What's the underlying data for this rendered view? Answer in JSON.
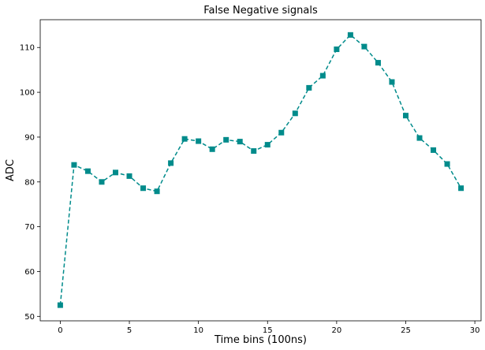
{
  "chart_data": {
    "type": "line",
    "title": "False Negative signals",
    "xlabel": "Time bins (100ns)",
    "ylabel": "ADC",
    "xlim": [
      -1.45,
      30.45
    ],
    "ylim": [
      49.0,
      116.2
    ],
    "xticks": [
      0,
      5,
      10,
      15,
      20,
      25,
      30
    ],
    "yticks": [
      50,
      60,
      70,
      80,
      90,
      100,
      110
    ],
    "grid": false,
    "series": [
      {
        "color": "#008b8b",
        "line_style": "dashed",
        "marker": "square",
        "x": [
          0,
          1,
          2,
          3,
          4,
          5,
          6,
          7,
          8,
          9,
          10,
          11,
          12,
          13,
          14,
          15,
          16,
          17,
          18,
          19,
          20,
          21,
          22,
          23,
          24,
          25,
          26,
          27,
          28,
          29
        ],
        "y": [
          52.5,
          83.8,
          82.4,
          80.0,
          82.1,
          81.3,
          78.6,
          77.9,
          84.2,
          89.6,
          89.1,
          87.3,
          89.4,
          89.0,
          86.9,
          88.3,
          91.0,
          95.3,
          101.0,
          103.7,
          109.6,
          112.8,
          110.2,
          106.6,
          102.3,
          94.8,
          89.8,
          87.1,
          84.0,
          78.6
        ]
      }
    ]
  }
}
